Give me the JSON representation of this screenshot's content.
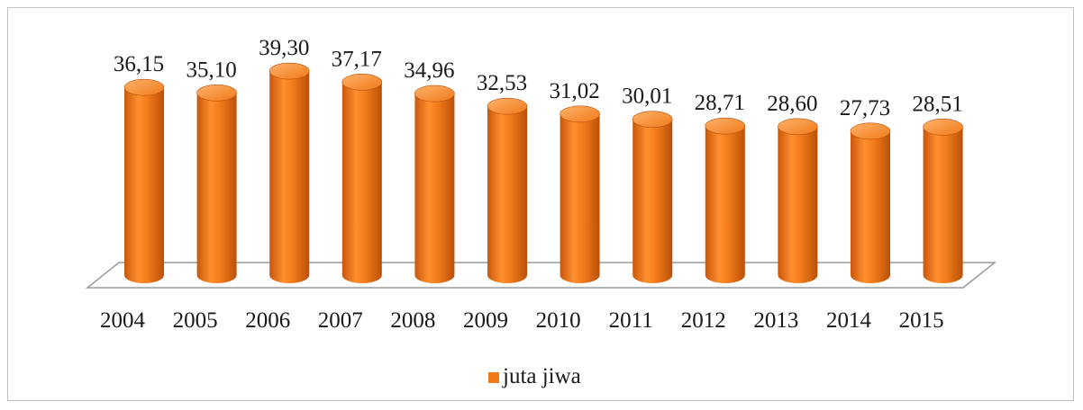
{
  "chart_data": {
    "type": "bar",
    "style": "3d-cylinder",
    "categories": [
      "2004",
      "2005",
      "2006",
      "2007",
      "2008",
      "2009",
      "2010",
      "2011",
      "2012",
      "2013",
      "2014",
      "2015"
    ],
    "series": [
      {
        "name": "juta jiwa",
        "values": [
          36.15,
          35.1,
          39.3,
          37.17,
          34.96,
          32.53,
          31.02,
          30.01,
          28.71,
          28.6,
          27.73,
          28.51
        ],
        "labels": [
          "36,15",
          "35,10",
          "39,30",
          "37,17",
          "34,96",
          "32,53",
          "31,02",
          "30,01",
          "28,71",
          "28,60",
          "27,73",
          "28,51"
        ]
      }
    ],
    "title": "",
    "xlabel": "",
    "ylabel": "",
    "ylim": [
      0,
      40
    ],
    "grid": false,
    "legend_position": "bottom",
    "colors": {
      "bar": "#f07a1a",
      "bar_dark": "#b9500a",
      "bar_light": "#ffb26b",
      "floor_edge": "#9a9a9a"
    }
  }
}
